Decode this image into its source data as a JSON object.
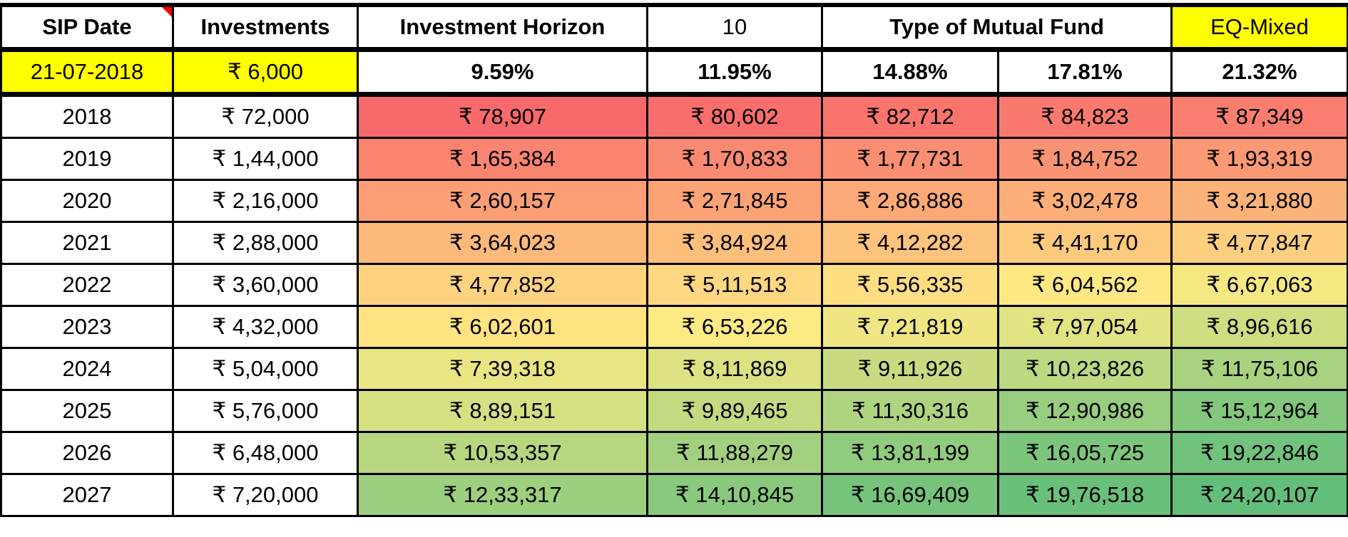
{
  "header": {
    "sip_date_label": "SIP Date",
    "investments_label": "Investments",
    "horizon_label": "Investment Horizon",
    "horizon_value": "10",
    "fund_type_label": "Type of Mutual Fund",
    "fund_type_value": "EQ-Mixed"
  },
  "params": {
    "sip_date": "21-07-2018",
    "monthly_investment": "₹ 6,000",
    "rates": [
      "9.59%",
      "11.95%",
      "14.88%",
      "17.81%",
      "21.32%"
    ]
  },
  "rows": [
    {
      "year": "2018",
      "invested": "₹ 72,000",
      "values": [
        "₹ 78,907",
        "₹ 80,602",
        "₹ 82,712",
        "₹ 84,823",
        "₹ 87,349"
      ]
    },
    {
      "year": "2019",
      "invested": "₹ 1,44,000",
      "values": [
        "₹ 1,65,384",
        "₹ 1,70,833",
        "₹ 1,77,731",
        "₹ 1,84,752",
        "₹ 1,93,319"
      ]
    },
    {
      "year": "2020",
      "invested": "₹ 2,16,000",
      "values": [
        "₹ 2,60,157",
        "₹ 2,71,845",
        "₹ 2,86,886",
        "₹ 3,02,478",
        "₹ 3,21,880"
      ]
    },
    {
      "year": "2021",
      "invested": "₹ 2,88,000",
      "values": [
        "₹ 3,64,023",
        "₹ 3,84,924",
        "₹ 4,12,282",
        "₹ 4,41,170",
        "₹ 4,77,847"
      ]
    },
    {
      "year": "2022",
      "invested": "₹ 3,60,000",
      "values": [
        "₹ 4,77,852",
        "₹ 5,11,513",
        "₹ 5,56,335",
        "₹ 6,04,562",
        "₹ 6,67,063"
      ]
    },
    {
      "year": "2023",
      "invested": "₹ 4,32,000",
      "values": [
        "₹ 6,02,601",
        "₹ 6,53,226",
        "₹ 7,21,819",
        "₹ 7,97,054",
        "₹ 8,96,616"
      ]
    },
    {
      "year": "2024",
      "invested": "₹ 5,04,000",
      "values": [
        "₹ 7,39,318",
        "₹ 8,11,869",
        "₹ 9,11,926",
        "₹ 10,23,826",
        "₹ 11,75,106"
      ]
    },
    {
      "year": "2025",
      "invested": "₹ 5,76,000",
      "values": [
        "₹ 8,89,151",
        "₹ 9,89,465",
        "₹ 11,30,316",
        "₹ 12,90,986",
        "₹ 15,12,964"
      ]
    },
    {
      "year": "2026",
      "invested": "₹ 6,48,000",
      "values": [
        "₹ 10,53,357",
        "₹ 11,88,279",
        "₹ 13,81,199",
        "₹ 16,05,725",
        "₹ 19,22,846"
      ]
    },
    {
      "year": "2027",
      "invested": "₹ 7,20,000",
      "values": [
        "₹ 12,33,317",
        "₹ 14,10,845",
        "₹ 16,69,409",
        "₹ 19,76,518",
        "₹ 24,20,107"
      ]
    }
  ],
  "colors": {
    "highlight": "#FFFF00",
    "scale_low": "#F8696B",
    "scale_mid": "#FFEB84",
    "scale_high": "#63BE7B"
  }
}
